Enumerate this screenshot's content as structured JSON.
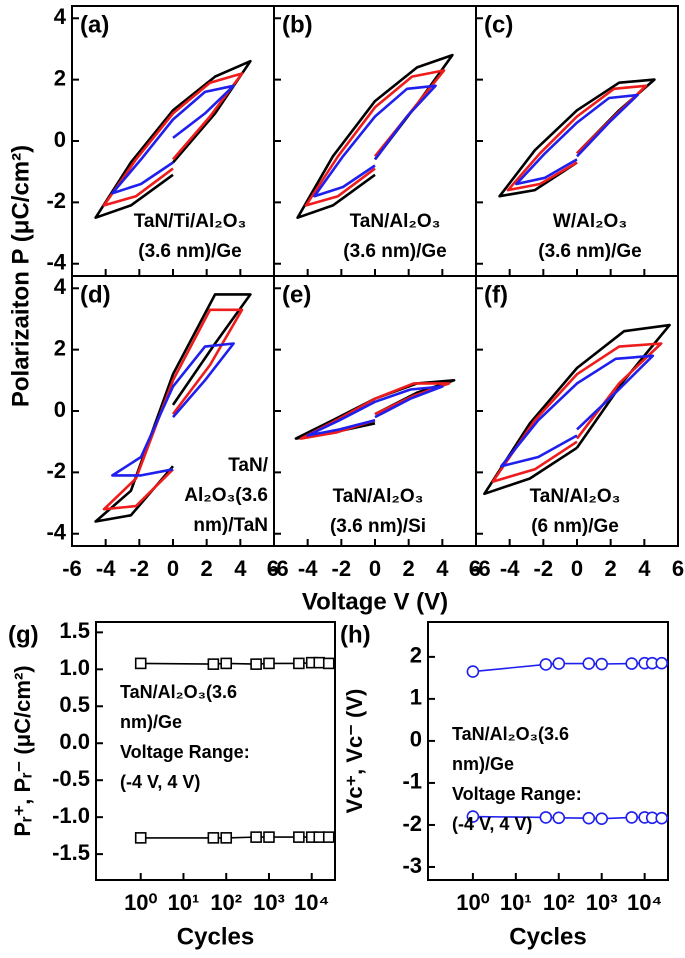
{
  "shared_labels": {
    "ylabel": "Polarizaiton P (μC/cm²)",
    "xlabel": "Voltage V (V)"
  },
  "chart_data": [
    {
      "type": "line",
      "label": "(a)",
      "annotation": [
        "TaN/Ti/Al₂O₃",
        "(3.6 nm)/Ge"
      ],
      "xlim": [
        -6,
        6
      ],
      "xticks": [
        -6,
        -4,
        -2,
        0,
        2,
        4,
        6
      ],
      "ylim": [
        -4.4,
        4.4
      ],
      "yticks": [
        4,
        2,
        0,
        -2,
        -4
      ],
      "series": [
        {
          "color": "#000000",
          "x": [
            0,
            2.5,
            4.6,
            2.5,
            0,
            -2.5,
            -4.6,
            -2.5,
            0
          ],
          "values": [
            -0.7,
            0.9,
            2.6,
            2.1,
            1.0,
            -0.7,
            -2.5,
            -2.1,
            -1.1
          ]
        },
        {
          "color": "#ee1c1c",
          "x": [
            0,
            2.2,
            4.1,
            2.2,
            0,
            -2.2,
            -4.1,
            -2.2,
            0
          ],
          "values": [
            -0.6,
            0.8,
            2.2,
            1.9,
            0.9,
            -0.6,
            -2.1,
            -1.8,
            -0.9
          ]
        },
        {
          "color": "#1f1fee",
          "x": [
            0,
            1.9,
            3.6,
            1.9,
            0,
            -1.9,
            -3.6,
            -1.9,
            0
          ],
          "values": [
            0.1,
            0.9,
            1.8,
            1.6,
            0.7,
            -0.6,
            -1.7,
            -1.4,
            -0.7
          ]
        }
      ]
    },
    {
      "type": "line",
      "label": "(b)",
      "annotation": [
        "TaN/Al₂O₃",
        "(3.6 nm)/Ge"
      ],
      "xlim": [
        -6,
        6
      ],
      "xticks": [
        -6,
        -4,
        -2,
        0,
        2,
        4,
        6
      ],
      "ylim": [
        -4.4,
        4.4
      ],
      "yticks": [
        4,
        2,
        0,
        -2,
        -4
      ],
      "series": [
        {
          "color": "#000000",
          "x": [
            0,
            2.5,
            4.6,
            2.5,
            0,
            -2.5,
            -4.6,
            -2.5,
            0
          ],
          "values": [
            -0.6,
            1.2,
            2.8,
            2.4,
            1.3,
            -0.5,
            -2.5,
            -2.1,
            -1.1
          ]
        },
        {
          "color": "#ee1c1c",
          "x": [
            0,
            2.2,
            4.1,
            2.2,
            0,
            -2.2,
            -4.1,
            -2.2,
            0
          ],
          "values": [
            -0.5,
            1.0,
            2.3,
            2.1,
            1.1,
            -0.5,
            -2.1,
            -1.8,
            -0.9
          ]
        },
        {
          "color": "#1f1fee",
          "x": [
            0,
            1.9,
            3.6,
            1.9,
            0,
            -1.9,
            -3.6,
            -1.9,
            0
          ],
          "values": [
            -0.6,
            0.8,
            1.8,
            1.7,
            0.8,
            -0.5,
            -1.8,
            -1.5,
            -0.8
          ]
        }
      ]
    },
    {
      "type": "line",
      "label": "(c)",
      "annotation": [
        "W/Al₂O₃",
        "(3.6 nm)/Ge"
      ],
      "xlim": [
        -6,
        6
      ],
      "xticks": [
        -6,
        -4,
        -2,
        0,
        2,
        4,
        6
      ],
      "ylim": [
        -4.4,
        4.4
      ],
      "yticks": [
        4,
        2,
        0,
        -2,
        -4
      ],
      "series": [
        {
          "color": "#000000",
          "x": [
            0,
            2.5,
            4.6,
            2.5,
            0,
            -2.5,
            -4.6,
            -2.5,
            0
          ],
          "values": [
            -0.4,
            1.0,
            2.0,
            1.9,
            1.0,
            -0.3,
            -1.8,
            -1.6,
            -0.7
          ]
        },
        {
          "color": "#ee1c1c",
          "x": [
            0,
            2.2,
            4.1,
            2.2,
            0,
            -2.2,
            -4.1,
            -2.2,
            0
          ],
          "values": [
            -0.4,
            0.8,
            1.8,
            1.7,
            0.8,
            -0.4,
            -1.6,
            -1.4,
            -0.7
          ]
        },
        {
          "color": "#1f1fee",
          "x": [
            0,
            1.9,
            3.6,
            1.9,
            0,
            -1.9,
            -3.6,
            -1.9,
            0
          ],
          "values": [
            -0.5,
            0.6,
            1.5,
            1.4,
            0.6,
            -0.4,
            -1.4,
            -1.2,
            -0.6
          ]
        }
      ]
    },
    {
      "type": "line",
      "label": "(d)",
      "annotation": [
        "TaN/",
        "Al₂O₃(3.6",
        "nm)/TaN"
      ],
      "xlim": [
        -6,
        6
      ],
      "xticks": [
        -6,
        -4,
        -2,
        0,
        2,
        4,
        6
      ],
      "ylim": [
        -4.4,
        4.4
      ],
      "yticks": [
        4,
        2,
        0,
        -2,
        -4
      ],
      "series": [
        {
          "color": "#000000",
          "x": [
            0,
            2.5,
            4.6,
            2.5,
            0,
            -2.5,
            -4.6,
            -2.5,
            0
          ],
          "values": [
            0.2,
            2.2,
            3.8,
            3.8,
            1.2,
            -2.6,
            -3.6,
            -3.4,
            -1.8
          ]
        },
        {
          "color": "#ee1c1c",
          "x": [
            0,
            2.2,
            4.1,
            2.2,
            0,
            -2.2,
            -4.1,
            -2.2,
            0
          ],
          "values": [
            -0.1,
            1.5,
            3.3,
            3.3,
            1.0,
            -2.2,
            -3.2,
            -3.1,
            -1.9
          ]
        },
        {
          "color": "#1f1fee",
          "x": [
            0,
            1.9,
            3.6,
            1.9,
            0,
            -1.9,
            -3.6,
            -1.9,
            0
          ],
          "values": [
            -0.2,
            1.0,
            2.2,
            2.1,
            0.8,
            -1.5,
            -2.1,
            -2.1,
            -1.9
          ]
        }
      ]
    },
    {
      "type": "line",
      "label": "(e)",
      "annotation": [
        "TaN/Al₂O₃",
        "(3.6 nm)/Si"
      ],
      "xlim": [
        -6,
        6
      ],
      "xticks": [
        -6,
        -4,
        -2,
        0,
        2,
        4,
        6
      ],
      "ylim": [
        -4.4,
        4.4
      ],
      "yticks": [
        4,
        2,
        0,
        -2,
        -4
      ],
      "series": [
        {
          "color": "#000000",
          "x": [
            0,
            2.5,
            4.7,
            2.5,
            0,
            -2.5,
            -4.7,
            -2.5,
            0
          ],
          "values": [
            -0.1,
            0.6,
            1.0,
            0.9,
            0.4,
            -0.3,
            -0.9,
            -0.7,
            -0.4
          ]
        },
        {
          "color": "#ee1c1c",
          "x": [
            0,
            2.3,
            4.4,
            2.3,
            0,
            -2.3,
            -4.4,
            -2.3,
            0
          ],
          "values": [
            -0.1,
            0.5,
            0.9,
            0.9,
            0.4,
            -0.3,
            -0.9,
            -0.7,
            -0.3
          ]
        },
        {
          "color": "#1f1fee",
          "x": [
            0,
            2.1,
            4.0,
            2.1,
            0,
            -2.1,
            -4.0,
            -2.1,
            0
          ],
          "values": [
            -0.2,
            0.4,
            0.8,
            0.7,
            0.3,
            -0.3,
            -0.8,
            -0.6,
            -0.3
          ]
        }
      ]
    },
    {
      "type": "line",
      "label": "(f)",
      "annotation": [
        "TaN/Al₂O₃",
        "(6 nm)/Ge"
      ],
      "xlim": [
        -6,
        6
      ],
      "xticks": [
        -6,
        -4,
        -2,
        0,
        2,
        4,
        6
      ],
      "ylim": [
        -4.4,
        4.4
      ],
      "yticks": [
        4,
        2,
        0,
        -2,
        -4
      ],
      "series": [
        {
          "color": "#000000",
          "x": [
            0,
            2.8,
            5.5,
            2.8,
            0,
            -2.8,
            -5.5,
            -2.8,
            0
          ],
          "values": [
            -1.2,
            1.0,
            2.8,
            2.6,
            1.4,
            -0.4,
            -2.7,
            -2.2,
            -1.2
          ]
        },
        {
          "color": "#ee1c1c",
          "x": [
            0,
            2.5,
            5.0,
            2.5,
            0,
            -2.5,
            -5.0,
            -2.5,
            0
          ],
          "values": [
            -0.9,
            0.9,
            2.2,
            2.1,
            1.2,
            -0.3,
            -2.3,
            -1.9,
            -1.0
          ]
        },
        {
          "color": "#1f1fee",
          "x": [
            0,
            2.3,
            4.5,
            2.3,
            0,
            -2.3,
            -4.5,
            -2.3,
            0
          ],
          "values": [
            -0.6,
            0.6,
            1.8,
            1.7,
            0.9,
            -0.3,
            -1.8,
            -1.5,
            -0.8
          ]
        }
      ]
    },
    {
      "type": "line",
      "label": "(g)",
      "annotation": [
        "TaN/Al₂O₃(3.6",
        "nm)/Ge",
        "Voltage Range:",
        "(-4 V, 4 V)"
      ],
      "ylabel": "Pᵣ⁺, Pᵣ⁻ (μC/cm²)",
      "xlabel": "Cycles",
      "marker": "square",
      "xscale": "log",
      "xlim": [
        0.09,
        35000
      ],
      "xticks": [
        {
          "value": 1,
          "label": "10⁰"
        },
        {
          "value": 10,
          "label": "10¹"
        },
        {
          "value": 100,
          "label": "10²"
        },
        {
          "value": 1000,
          "label": "10³"
        },
        {
          "value": 10000,
          "label": "10⁴"
        }
      ],
      "ylim": [
        -1.85,
        1.64
      ],
      "yticks": [
        1.5,
        {
          "value": 1,
          "label": "1.0"
        },
        0.5,
        {
          "value": 0,
          "label": "0.0"
        },
        -0.5,
        {
          "value": -1,
          "label": "-1.0"
        },
        -1.5
      ],
      "series": [
        {
          "color": "#000000",
          "x": [
            1,
            50,
            100,
            500,
            1000,
            5000,
            10000,
            15000,
            25000
          ],
          "values": [
            1.08,
            1.07,
            1.08,
            1.07,
            1.08,
            1.08,
            1.09,
            1.09,
            1.08
          ]
        },
        {
          "color": "#000000",
          "x": [
            1,
            50,
            100,
            500,
            1000,
            5000,
            10000,
            15000,
            25000
          ],
          "values": [
            -1.28,
            -1.28,
            -1.28,
            -1.27,
            -1.27,
            -1.27,
            -1.27,
            -1.27,
            -1.27
          ]
        }
      ]
    },
    {
      "type": "line",
      "label": "(h)",
      "annotation": [
        "TaN/Al₂O₃(3.6",
        "nm)/Ge",
        "Voltage Range:",
        "(-4 V, 4 V)"
      ],
      "ylabel": "Vc⁺, Vc⁻ (V)",
      "xlabel": "Cycles",
      "marker": "circle",
      "xscale": "log",
      "xlim": [
        0.09,
        35000
      ],
      "xticks": [
        {
          "value": 1,
          "label": "10⁰"
        },
        {
          "value": 10,
          "label": "10¹"
        },
        {
          "value": 100,
          "label": "10²"
        },
        {
          "value": 1000,
          "label": "10³"
        },
        {
          "value": 10000,
          "label": "10⁴"
        }
      ],
      "ylim": [
        -3.31,
        2.83
      ],
      "yticks": [
        2,
        1,
        0,
        -1,
        -2,
        -3
      ],
      "series": [
        {
          "color": "#1f1fee",
          "x": [
            1,
            50,
            100,
            500,
            1000,
            5000,
            10000,
            15000,
            25000
          ],
          "values": [
            1.65,
            1.82,
            1.84,
            1.84,
            1.83,
            1.84,
            1.85,
            1.85,
            1.85
          ]
        },
        {
          "color": "#1f1fee",
          "x": [
            1,
            50,
            100,
            500,
            1000,
            5000,
            10000,
            15000,
            25000
          ],
          "values": [
            -1.8,
            -1.82,
            -1.83,
            -1.84,
            -1.85,
            -1.82,
            -1.82,
            -1.83,
            -1.84
          ]
        }
      ]
    }
  ]
}
